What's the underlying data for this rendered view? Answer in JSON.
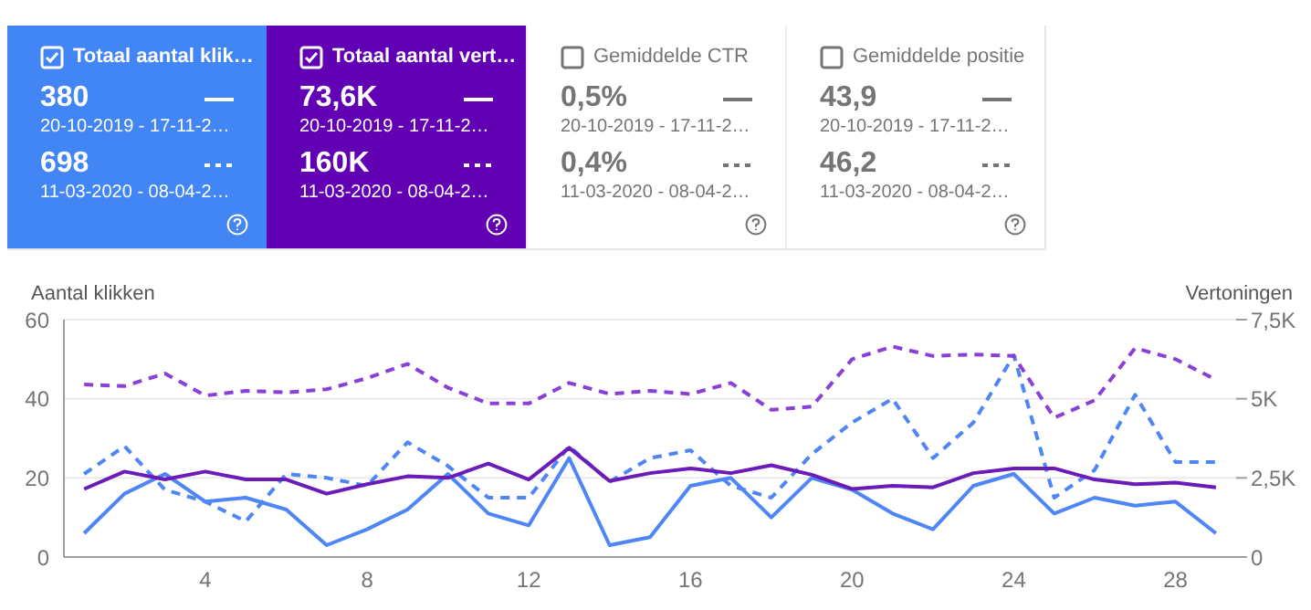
{
  "chart_data": [
    {
      "type": "other",
      "colors": [
        "#4285f4",
        "#6200b4",
        null,
        null
      ],
      "annotations": [
        "Totaal aantal klik…",
        "380",
        "20-10-2019 - 17-11-2…",
        "698",
        "11-03-2020 - 08-04-2…",
        "Totaal aantal vert…",
        "73,6K",
        "20-10-2019 - 17-11-2…",
        "160K",
        "11-03-2020 - 08-04-2…",
        "Gemiddelde CTR",
        "0,5%",
        "20-10-2019 - 17-11-2…",
        "0,4%",
        "11-03-2020 - 08-04-2…",
        "Gemiddelde positie",
        "43,9",
        "20-10-2019 - 17-11-2…",
        "46,2",
        "11-03-2020 - 08-04-2…"
      ]
    },
    {
      "type": "line",
      "ylabel": "Aantal klikken",
      "y2label": "Vertoningen",
      "x": [
        1,
        2,
        3,
        4,
        5,
        6,
        7,
        8,
        9,
        10,
        11,
        12,
        13,
        14,
        15,
        16,
        17,
        18,
        19,
        20,
        21,
        22,
        23,
        24,
        25,
        26,
        27,
        28,
        29
      ],
      "xlim": [
        0.5,
        29.5
      ],
      "xticks": [
        4,
        8,
        12,
        16,
        20,
        24,
        28
      ],
      "ylim": [
        0,
        60
      ],
      "yticks": [
        0,
        20,
        40,
        60
      ],
      "y2lim": [
        0,
        7500
      ],
      "y2ticks": [
        {
          "value": 0,
          "label": "0"
        },
        {
          "value": 2500,
          "label": "2,5K"
        },
        {
          "value": 5000,
          "label": "5K"
        },
        {
          "value": 7500,
          "label": "7,5K"
        }
      ],
      "grid": "y",
      "legend": false,
      "marker": "none",
      "series": [
        {
          "color": "#4f86f7",
          "line_style": "solid",
          "values": [
            6,
            16,
            21,
            14,
            15,
            12,
            3,
            7,
            12,
            21,
            11,
            8,
            25,
            3,
            5,
            18,
            20,
            10,
            20,
            17,
            11,
            7,
            18,
            21,
            11,
            15,
            13,
            14,
            6
          ]
        },
        {
          "color": "#4f86f7",
          "line_style": "dashed",
          "values": [
            21,
            28,
            17,
            14,
            9,
            21,
            20,
            18,
            29,
            23,
            15,
            15,
            28,
            19,
            25,
            27,
            18,
            15,
            26,
            34,
            40,
            25,
            34,
            51,
            15,
            22,
            41,
            24,
            24
          ]
        },
        {
          "type": "line",
          "axis": "y2",
          "color": "#6a1bb8",
          "line_style": "solid",
          "values": [
            2150,
            2700,
            2450,
            2700,
            2450,
            2450,
            2000,
            2300,
            2550,
            2500,
            2950,
            2450,
            3450,
            2400,
            2650,
            2800,
            2650,
            2900,
            2600,
            2150,
            2250,
            2200,
            2650,
            2800,
            2800,
            2450,
            2300,
            2350,
            2200
          ]
        },
        {
          "type": "line",
          "axis": "y2",
          "color": "#8a3fd6",
          "line_style": "dashed",
          "values": [
            5450,
            5400,
            5800,
            5100,
            5250,
            5200,
            5300,
            5650,
            6100,
            5350,
            4850,
            4850,
            5500,
            5150,
            5250,
            5150,
            5500,
            4650,
            4750,
            6250,
            6650,
            6350,
            6400,
            6350,
            4400,
            4950,
            6600,
            6250,
            5600
          ]
        }
      ]
    }
  ]
}
